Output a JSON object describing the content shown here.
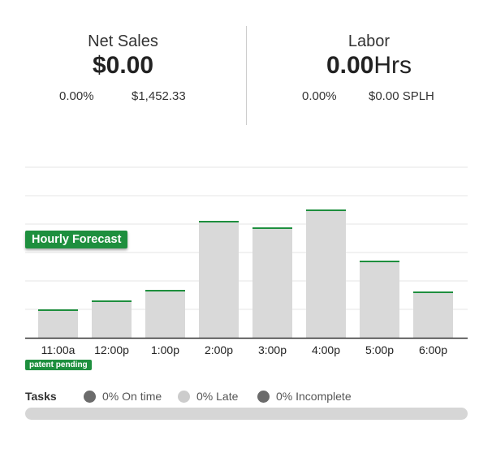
{
  "net_sales": {
    "label": "Net Sales",
    "value": "$0.00",
    "percent": "0.00%",
    "forecast": "$1,452.33"
  },
  "labor": {
    "label": "Labor",
    "value": "0.00",
    "unit": "Hrs",
    "percent": "0.00%",
    "splh": "$0.00 SPLH"
  },
  "forecast_badge": "Hourly Forecast",
  "patent_badge": "patent pending",
  "chart_data": {
    "type": "bar",
    "categories": [
      "11:00a",
      "12:00p",
      "1:00p",
      "2:00p",
      "3:00p",
      "4:00p",
      "5:00p",
      "6:00p"
    ],
    "values": [
      35,
      46,
      59,
      144,
      136,
      158,
      95,
      57
    ],
    "ylim": [
      0,
      210
    ],
    "grid": true,
    "colors": {
      "bar": "#d9d9d9",
      "bar_top": "#1e8f3e",
      "grid": "#e4e4e4",
      "axis": "#333333"
    }
  },
  "tasks": {
    "title": "Tasks",
    "legend": [
      {
        "label": "0% On time",
        "color": "#6b6b6b"
      },
      {
        "label": "0% Late",
        "color": "#cccccc"
      },
      {
        "label": "0% Incomplete",
        "color": "#6b6b6b"
      }
    ],
    "progress": 0
  }
}
